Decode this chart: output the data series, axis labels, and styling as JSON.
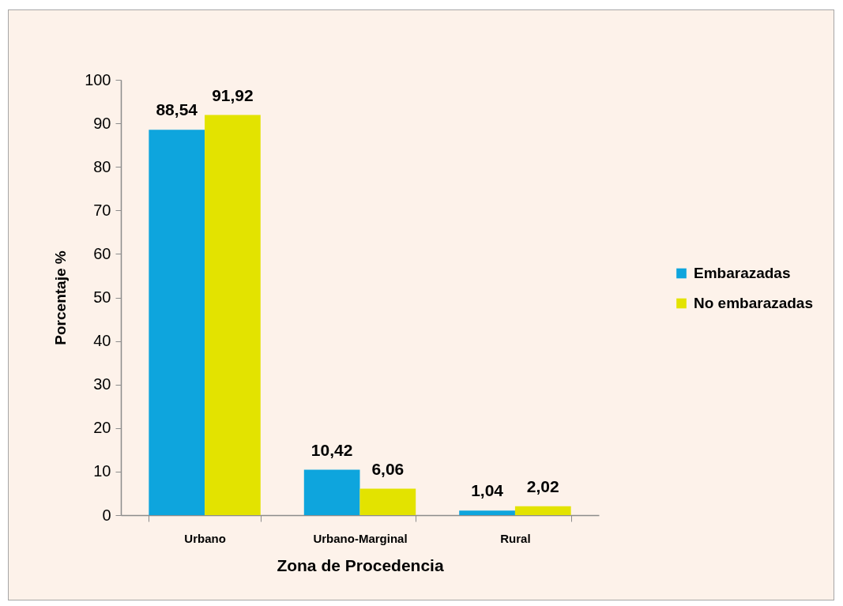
{
  "chart_data": {
    "type": "bar",
    "xlabel": "Zona de Procedencia",
    "ylabel": "Porcentaje %",
    "categories": [
      "Urbano",
      "Urbano-Marginal",
      "Rural"
    ],
    "series": [
      {
        "name": "Embarazadas",
        "color": "#0ea5dd",
        "values": [
          88.54,
          10.42,
          1.04
        ],
        "value_labels": [
          "88,54",
          "10,42",
          "1,04"
        ]
      },
      {
        "name": "No embarazadas",
        "color": "#e3e300",
        "values": [
          91.92,
          6.06,
          2.02
        ],
        "value_labels": [
          "91,92",
          "6,06",
          "2,02"
        ]
      }
    ],
    "ylim": [
      0,
      100
    ],
    "yticks": [
      0,
      10,
      20,
      30,
      40,
      50,
      60,
      70,
      80,
      90,
      100
    ],
    "grid": false,
    "legend": "right"
  }
}
